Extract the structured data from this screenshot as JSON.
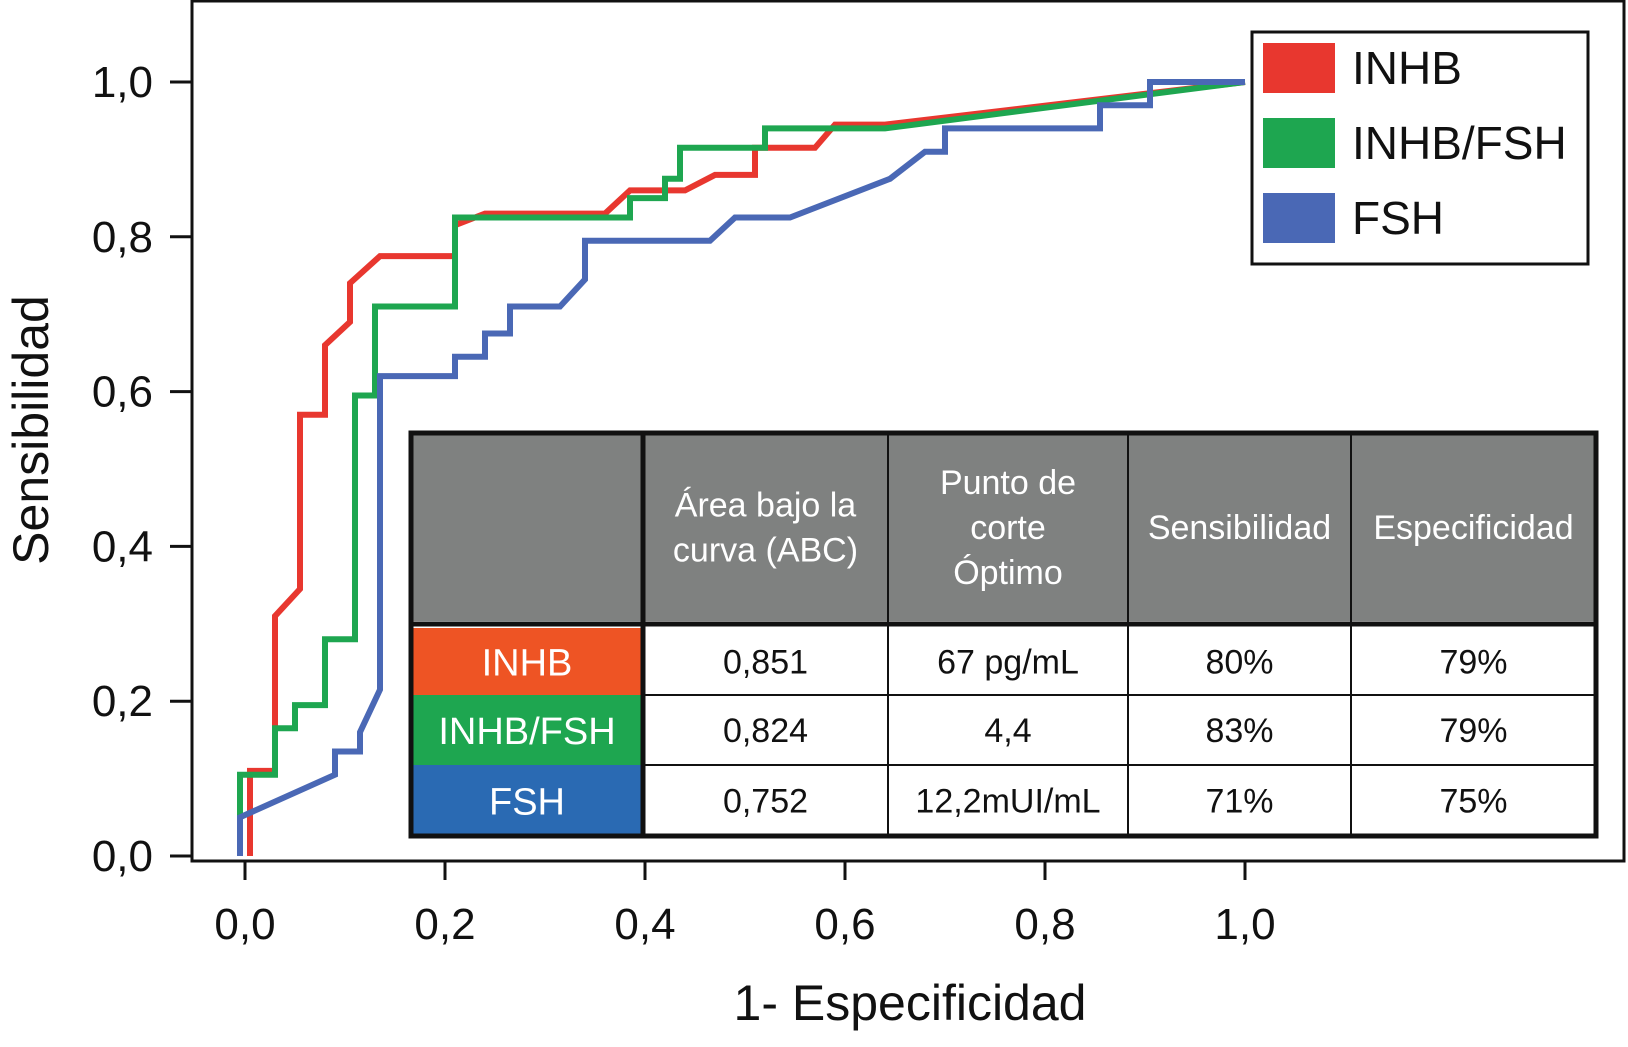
{
  "chart_data": {
    "type": "line",
    "title": "",
    "xlabel": "1- Especificidad",
    "ylabel": "Sensibilidad",
    "xlim": [
      0,
      1
    ],
    "ylim": [
      0,
      1
    ],
    "x_ticks": [
      "0,0",
      "0,2",
      "0,4",
      "0,6",
      "0,8",
      "1,0"
    ],
    "y_ticks": [
      "0,0",
      "0,2",
      "0,4",
      "0,6",
      "0,8",
      "1,0"
    ],
    "legend_position": "top-right",
    "series": [
      {
        "name": "INHB",
        "color": "#e8372f",
        "points": [
          [
            0.005,
            0
          ],
          [
            0.005,
            0.04
          ],
          [
            0.005,
            0.11
          ],
          [
            0.03,
            0.11
          ],
          [
            0.03,
            0.31
          ],
          [
            0.055,
            0.345
          ],
          [
            0.055,
            0.57
          ],
          [
            0.08,
            0.57
          ],
          [
            0.08,
            0.66
          ],
          [
            0.105,
            0.69
          ],
          [
            0.105,
            0.74
          ],
          [
            0.135,
            0.775
          ],
          [
            0.21,
            0.775
          ],
          [
            0.21,
            0.815
          ],
          [
            0.24,
            0.83
          ],
          [
            0.36,
            0.83
          ],
          [
            0.385,
            0.86
          ],
          [
            0.41,
            0.86
          ],
          [
            0.44,
            0.86
          ],
          [
            0.47,
            0.88
          ],
          [
            0.51,
            0.88
          ],
          [
            0.51,
            0.915
          ],
          [
            0.57,
            0.915
          ],
          [
            0.59,
            0.945
          ],
          [
            0.64,
            0.945
          ],
          [
            1.0,
            1.0
          ]
        ]
      },
      {
        "name": "INHB/FSH",
        "color": "#1ea650",
        "points": [
          [
            -0.005,
            0
          ],
          [
            -0.005,
            0.105
          ],
          [
            0.03,
            0.105
          ],
          [
            0.03,
            0.165
          ],
          [
            0.05,
            0.165
          ],
          [
            0.05,
            0.195
          ],
          [
            0.08,
            0.195
          ],
          [
            0.08,
            0.28
          ],
          [
            0.11,
            0.28
          ],
          [
            0.11,
            0.595
          ],
          [
            0.13,
            0.595
          ],
          [
            0.13,
            0.71
          ],
          [
            0.21,
            0.71
          ],
          [
            0.21,
            0.825
          ],
          [
            0.385,
            0.825
          ],
          [
            0.385,
            0.85
          ],
          [
            0.42,
            0.85
          ],
          [
            0.42,
            0.875
          ],
          [
            0.435,
            0.875
          ],
          [
            0.435,
            0.915
          ],
          [
            0.52,
            0.915
          ],
          [
            0.52,
            0.94
          ],
          [
            0.64,
            0.94
          ],
          [
            1.0,
            1.0
          ]
        ]
      },
      {
        "name": "FSH",
        "color": "#4a68b5",
        "points": [
          [
            -0.005,
            0
          ],
          [
            -0.005,
            0.05
          ],
          [
            0.09,
            0.105
          ],
          [
            0.09,
            0.135
          ],
          [
            0.115,
            0.135
          ],
          [
            0.115,
            0.16
          ],
          [
            0.135,
            0.215
          ],
          [
            0.135,
            0.62
          ],
          [
            0.21,
            0.62
          ],
          [
            0.21,
            0.645
          ],
          [
            0.24,
            0.645
          ],
          [
            0.24,
            0.675
          ],
          [
            0.265,
            0.675
          ],
          [
            0.265,
            0.71
          ],
          [
            0.315,
            0.71
          ],
          [
            0.34,
            0.745
          ],
          [
            0.34,
            0.795
          ],
          [
            0.465,
            0.795
          ],
          [
            0.49,
            0.825
          ],
          [
            0.545,
            0.825
          ],
          [
            0.645,
            0.875
          ],
          [
            0.68,
            0.91
          ],
          [
            0.7,
            0.91
          ],
          [
            0.7,
            0.94
          ],
          [
            0.855,
            0.94
          ],
          [
            0.855,
            0.97
          ],
          [
            0.905,
            0.97
          ],
          [
            0.905,
            1.0
          ],
          [
            1.0,
            1.0
          ]
        ]
      }
    ],
    "table": {
      "headers": [
        "",
        "Área bajo la curva (ABC)",
        "Punto de corte Óptimo",
        "Sensibilidad",
        "Especificidad"
      ],
      "header_lines": [
        [
          ""
        ],
        [
          "Área bajo la",
          "curva (ABC)"
        ],
        [
          "Punto de",
          "corte",
          "Óptimo"
        ],
        [
          "Sensibilidad"
        ],
        [
          "Especificidad"
        ]
      ],
      "rows": [
        {
          "label": "INHB",
          "color": "#ee5424",
          "cells": [
            "0,851",
            "67 pg/mL",
            "80%",
            "79%"
          ]
        },
        {
          "label": "INHB/FSH",
          "color": "#1ea650",
          "cells": [
            "0,824",
            "4,4",
            "83%",
            "79%"
          ]
        },
        {
          "label": "FSH",
          "color": "#2a6ab3",
          "cells": [
            "0,752",
            "12,2mUI/mL",
            "71%",
            "75%"
          ]
        }
      ]
    }
  }
}
